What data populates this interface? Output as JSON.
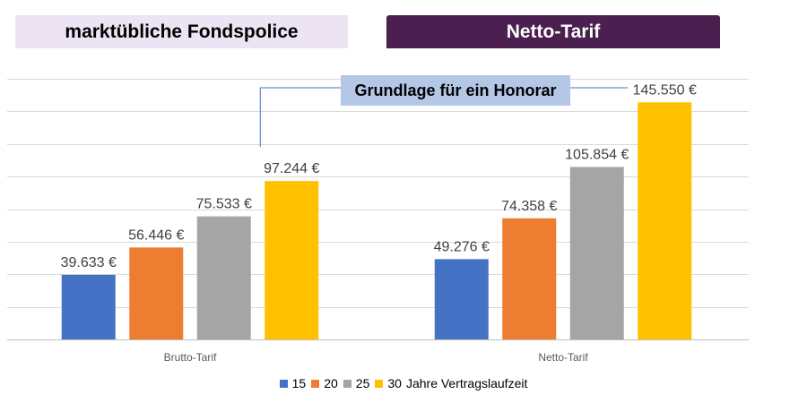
{
  "headers": {
    "left": "marktübliche Fondspolice",
    "right": "Netto-Tarif"
  },
  "callout": "Grundlage für ein Honorar",
  "chart_data": {
    "type": "bar",
    "categories": [
      "Brutto-Tarif",
      "Netto-Tarif"
    ],
    "series": [
      {
        "name": "15",
        "color": "#4472c4",
        "values": [
          39633,
          49276
        ],
        "labels": [
          "39.633 €",
          "49.276 €"
        ]
      },
      {
        "name": "20",
        "color": "#ed7d31",
        "values": [
          56446,
          74358
        ],
        "labels": [
          "56.446 €",
          "74.358 €"
        ]
      },
      {
        "name": "25",
        "color": "#a5a5a5",
        "values": [
          75533,
          105854
        ],
        "labels": [
          "75.533 €",
          "105.854 €"
        ]
      },
      {
        "name": "30",
        "color": "#ffc000",
        "values": [
          97244,
          145550
        ],
        "labels": [
          "97.244 €",
          "145.550 €"
        ]
      }
    ],
    "legend_suffix": "Jahre Vertragslaufzeit",
    "legend_position": "bottom",
    "ylim": [
      0,
      160000
    ],
    "grid": true
  }
}
